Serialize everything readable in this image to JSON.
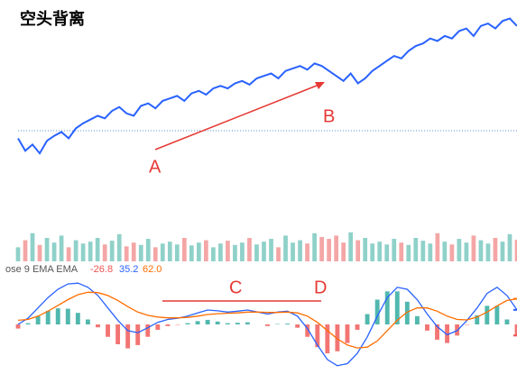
{
  "chart_data": [
    {
      "type": "line",
      "title": "空头背离",
      "color": "#2962ff",
      "ylim": [
        0,
        130
      ],
      "annotations": [
        "A",
        "B"
      ],
      "values": [
        30,
        20,
        25,
        18,
        28,
        32,
        35,
        30,
        38,
        42,
        45,
        48,
        46,
        52,
        55,
        50,
        48,
        56,
        58,
        54,
        60,
        62,
        64,
        60,
        66,
        68,
        65,
        70,
        72,
        70,
        74,
        76,
        73,
        78,
        80,
        82,
        78,
        84,
        86,
        88,
        85,
        90,
        88,
        84,
        80,
        76,
        82,
        74,
        78,
        84,
        88,
        92,
        96,
        94,
        100,
        104,
        106,
        110,
        108,
        112,
        110,
        116,
        118,
        112,
        120,
        122,
        118,
        124,
        126,
        120
      ]
    },
    {
      "type": "bar",
      "up_color": "#8fd1c9",
      "down_color": "#f4a6a6",
      "ylim": [
        0,
        100
      ],
      "values": [
        30,
        45,
        60,
        35,
        50,
        40,
        55,
        30,
        45,
        38,
        42,
        50,
        36,
        44,
        58,
        32,
        40,
        35,
        48,
        30,
        38,
        42,
        36,
        50,
        34,
        40,
        45,
        30,
        38,
        44,
        35,
        40,
        50,
        36,
        42,
        48,
        30,
        55,
        40,
        45,
        38,
        60,
        52,
        48,
        55,
        40,
        62,
        45,
        50,
        38,
        42,
        36,
        48,
        40,
        35,
        50,
        44,
        38,
        60,
        42,
        36,
        48,
        40,
        55,
        45,
        38,
        50,
        42,
        58,
        46
      ]
    },
    {
      "type": "macd",
      "label": "ose 9 EMA EMA",
      "ylim": [
        -120,
        120
      ],
      "up_color": "#26a69a",
      "annotations": [
        "C",
        "D"
      ],
      "legend": {
        "values": [
          -26.8,
          35.2,
          62.0
        ],
        "value_labels": [
          "-26.8",
          "35.2",
          "62.0"
        ]
      },
      "series": [
        {
          "color": "#ef5350",
          "values": [
            -10,
            3,
            20,
            33,
            39,
            38,
            28,
            12,
            -7,
            -30,
            -48,
            -58,
            -50,
            -30,
            -13,
            -4,
            -1,
            3,
            8,
            11,
            7,
            3,
            4,
            5,
            0,
            -4,
            1,
            2,
            -8,
            -30,
            -55,
            -70,
            -65,
            -45,
            -13,
            25,
            60,
            80,
            80,
            55,
            20,
            -15,
            -37,
            -45,
            -27,
            -1,
            22,
            45,
            45,
            12,
            -26.8
          ]
        },
        {
          "color": "#2962ff",
          "values": [
            0,
            15,
            40,
            65,
            85,
            98,
            100,
            90,
            70,
            40,
            10,
            -15,
            -20,
            -8,
            5,
            12,
            15,
            20,
            28,
            35,
            33,
            30,
            32,
            35,
            30,
            25,
            30,
            32,
            20,
            -10,
            -50,
            -85,
            -100,
            -95,
            -70,
            -30,
            20,
            65,
            90,
            85,
            60,
            25,
            -5,
            -25,
            -15,
            10,
            40,
            75,
            90,
            70,
            35.2
          ]
        },
        {
          "color": "#ff6d00",
          "values": [
            10,
            12,
            20,
            32,
            46,
            60,
            72,
            78,
            77,
            70,
            58,
            43,
            30,
            22,
            18,
            16,
            16,
            17,
            20,
            24,
            26,
            27,
            28,
            30,
            30,
            29,
            29,
            30,
            28,
            20,
            5,
            -15,
            -35,
            -50,
            -57,
            -55,
            -40,
            -15,
            10,
            30,
            40,
            40,
            32,
            20,
            12,
            11,
            18,
            30,
            45,
            58,
            62.0
          ]
        }
      ]
    }
  ]
}
